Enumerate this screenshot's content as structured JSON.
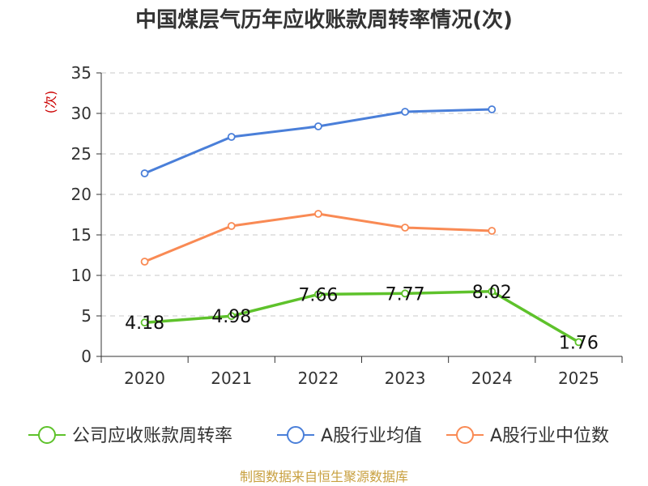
{
  "chart_data": {
    "type": "line",
    "title": "中国煤层气历年应收账款周转率情况(次)",
    "ylabel": "(次)",
    "xlabel": "",
    "categories": [
      "2020",
      "2021",
      "2022",
      "2023",
      "2024",
      "2025"
    ],
    "ylim": [
      0,
      35
    ],
    "yticks": [
      0,
      5,
      10,
      15,
      20,
      25,
      30,
      35
    ],
    "grid": true,
    "legend_position": "bottom",
    "series": [
      {
        "name": "公司应收账款周转率",
        "color": "#5ec22b",
        "values": [
          4.18,
          4.98,
          7.66,
          7.77,
          8.02,
          1.76
        ],
        "labels": [
          "4.18",
          "4.98",
          "7.66",
          "7.77",
          "8.02",
          "1.76"
        ]
      },
      {
        "name": "A股行业均值",
        "color": "#4a7fd9",
        "values": [
          22.6,
          27.1,
          28.4,
          30.2,
          30.5,
          null
        ]
      },
      {
        "name": "A股行业中位数",
        "color": "#f98a54",
        "values": [
          11.7,
          16.1,
          17.6,
          15.9,
          15.5,
          null
        ]
      }
    ]
  },
  "footer": {
    "source": "制图数据来自恒生聚源数据库"
  }
}
